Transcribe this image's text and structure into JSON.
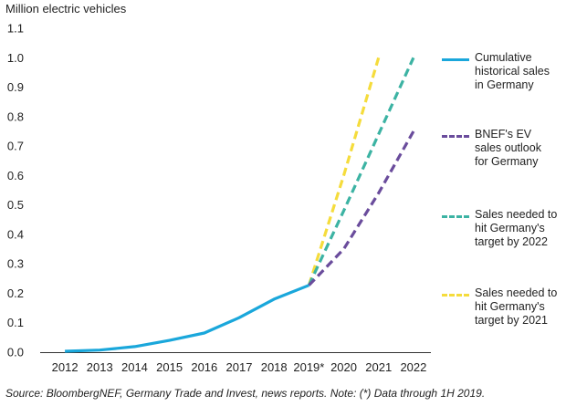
{
  "chart_data": {
    "type": "line",
    "ylabel": "Million electric vehicles",
    "x_categories": [
      "2012",
      "2013",
      "2014",
      "2015",
      "2016",
      "2017",
      "2018",
      "2019*",
      "2020",
      "2021",
      "2022"
    ],
    "ylim": [
      0,
      1.1
    ],
    "yticks": [
      "0.0",
      "0.1",
      "0.2",
      "0.3",
      "0.4",
      "0.5",
      "0.6",
      "0.7",
      "0.8",
      "0.9",
      "1.0",
      "1.1"
    ],
    "series": [
      {
        "name": "Cumulative historical sales in Germany",
        "legend_label": "Cumulative\nhistorical sales\nin Germany",
        "color": "#1aa7db",
        "style": "solid",
        "points": [
          [
            0,
            0.003
          ],
          [
            1,
            0.007
          ],
          [
            2,
            0.019
          ],
          [
            3,
            0.04
          ],
          [
            4,
            0.065
          ],
          [
            5,
            0.117
          ],
          [
            6,
            0.18
          ],
          [
            7,
            0.227
          ]
        ]
      },
      {
        "name": "BNEF's EV sales outlook for Germany",
        "legend_label": "BNEF's EV\nsales outlook\nfor Germany",
        "color": "#6a4c9c",
        "style": "dashed",
        "points": [
          [
            7,
            0.227
          ],
          [
            8,
            0.35
          ],
          [
            9,
            0.54
          ],
          [
            10,
            0.75
          ]
        ]
      },
      {
        "name": "Sales needed to hit Germany's target by 2022",
        "legend_label": "Sales needed to\nhit Germany's\ntarget by 2022",
        "color": "#3cb3a3",
        "style": "dashed",
        "points": [
          [
            7,
            0.227
          ],
          [
            8,
            0.48
          ],
          [
            9,
            0.74
          ],
          [
            10,
            1.0
          ]
        ]
      },
      {
        "name": "Sales needed to hit Germany's target by 2021",
        "legend_label": "Sales needed to\nhit Germany's\ntarget by 2021",
        "color": "#f5dc3c",
        "style": "dashed",
        "points": [
          [
            7,
            0.227
          ],
          [
            8,
            0.6
          ],
          [
            9,
            1.0
          ]
        ]
      }
    ]
  },
  "source_note": "Source: BloombergNEF, Germany Trade and Invest, news reports. Note: (*) Data through 1H 2019."
}
